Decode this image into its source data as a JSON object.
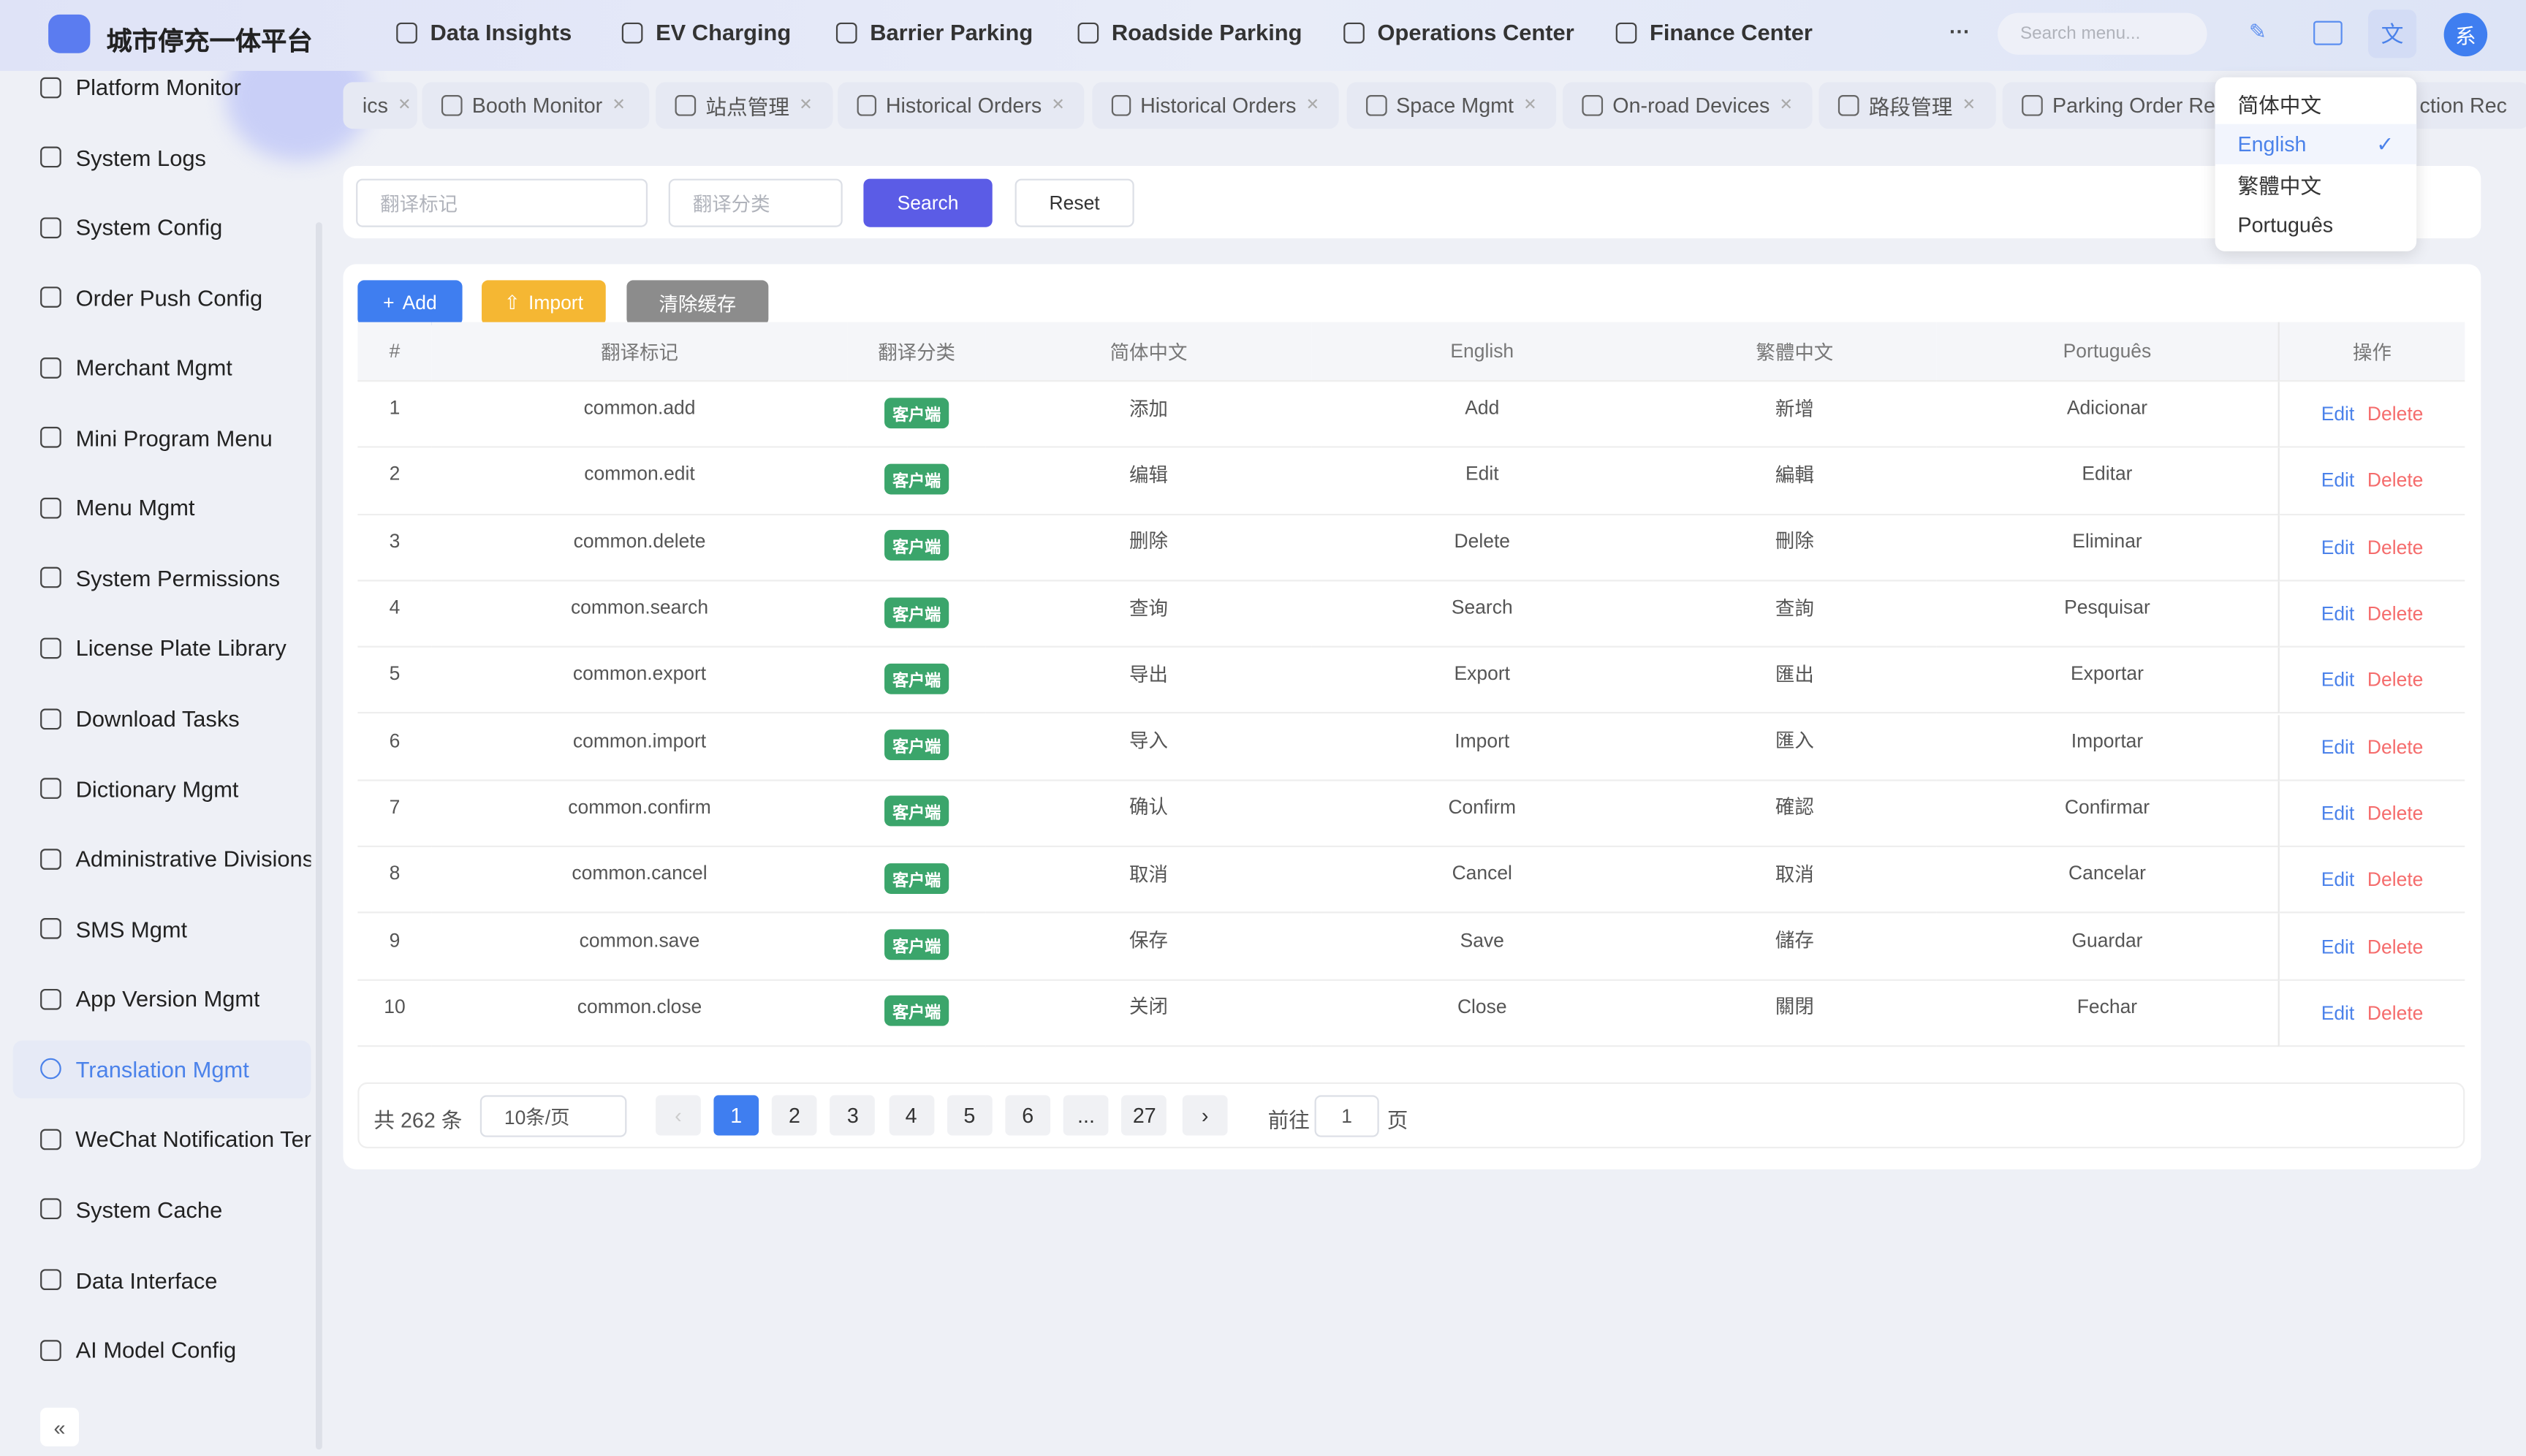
{
  "header": {
    "brand": "城市停充一体平台",
    "nav": [
      "Data Insights",
      "EV Charging",
      "Barrier Parking",
      "Roadside Parking",
      "Operations Center",
      "Finance Center"
    ],
    "search_placeholder": "Search menu...",
    "avatar": "系"
  },
  "sidebar": {
    "items": [
      "Platform Monitor",
      "System Logs",
      "System Config",
      "Order Push Config",
      "Merchant Mgmt",
      "Mini Program Menu",
      "Menu Mgmt",
      "System Permissions",
      "License Plate Library",
      "Download Tasks",
      "Dictionary Mgmt",
      "Administrative Divisions",
      "SMS Mgmt",
      "App Version Mgmt",
      "Translation Mgmt",
      "WeChat Notification Ten",
      "System Cache",
      "Data Interface",
      "AI Model Config"
    ],
    "active": "Translation Mgmt"
  },
  "tabs": [
    "ics",
    "Booth Monitor",
    "站点管理",
    "Historical Orders",
    "Historical Orders",
    "Space Mgmt",
    "On-road Devices",
    "路段管理",
    "Parking Order Rec",
    "ction Rec"
  ],
  "language_menu": {
    "options": [
      "简体中文",
      "English",
      "繁體中文",
      "Português"
    ],
    "selected": "English"
  },
  "filter": {
    "key_placeholder": "翻译标记",
    "category_placeholder": "翻译分类",
    "search": "Search",
    "reset": "Reset"
  },
  "toolbar": {
    "add": "Add",
    "import": "Import",
    "clear_cache": "清除缓存"
  },
  "table": {
    "headers": [
      "#",
      "翻译标记",
      "翻译分类",
      "简体中文",
      "English",
      "繁體中文",
      "Português",
      "操作"
    ],
    "rows": [
      [
        1,
        "common.add",
        "客户端",
        "添加",
        "Add",
        "新增",
        "Adicionar"
      ],
      [
        2,
        "common.edit",
        "客户端",
        "编辑",
        "Edit",
        "編輯",
        "Editar"
      ],
      [
        3,
        "common.delete",
        "客户端",
        "删除",
        "Delete",
        "刪除",
        "Eliminar"
      ],
      [
        4,
        "common.search",
        "客户端",
        "查询",
        "Search",
        "查詢",
        "Pesquisar"
      ],
      [
        5,
        "common.export",
        "客户端",
        "导出",
        "Export",
        "匯出",
        "Exportar"
      ],
      [
        6,
        "common.import",
        "客户端",
        "导入",
        "Import",
        "匯入",
        "Importar"
      ],
      [
        7,
        "common.confirm",
        "客户端",
        "确认",
        "Confirm",
        "確認",
        "Confirmar"
      ],
      [
        8,
        "common.cancel",
        "客户端",
        "取消",
        "Cancel",
        "取消",
        "Cancelar"
      ],
      [
        9,
        "common.save",
        "客户端",
        "保存",
        "Save",
        "儲存",
        "Guardar"
      ],
      [
        10,
        "common.close",
        "客户端",
        "关闭",
        "Close",
        "關閉",
        "Fechar"
      ]
    ],
    "actions": {
      "edit": "Edit",
      "delete": "Delete"
    }
  },
  "pagination": {
    "total": "共 262 条",
    "page_size": "10条/页",
    "pages": [
      "1",
      "2",
      "3",
      "4",
      "5",
      "6",
      "...",
      "27"
    ],
    "current": "1",
    "goto": "前往",
    "goto_value": "1",
    "page_unit": "页"
  }
}
